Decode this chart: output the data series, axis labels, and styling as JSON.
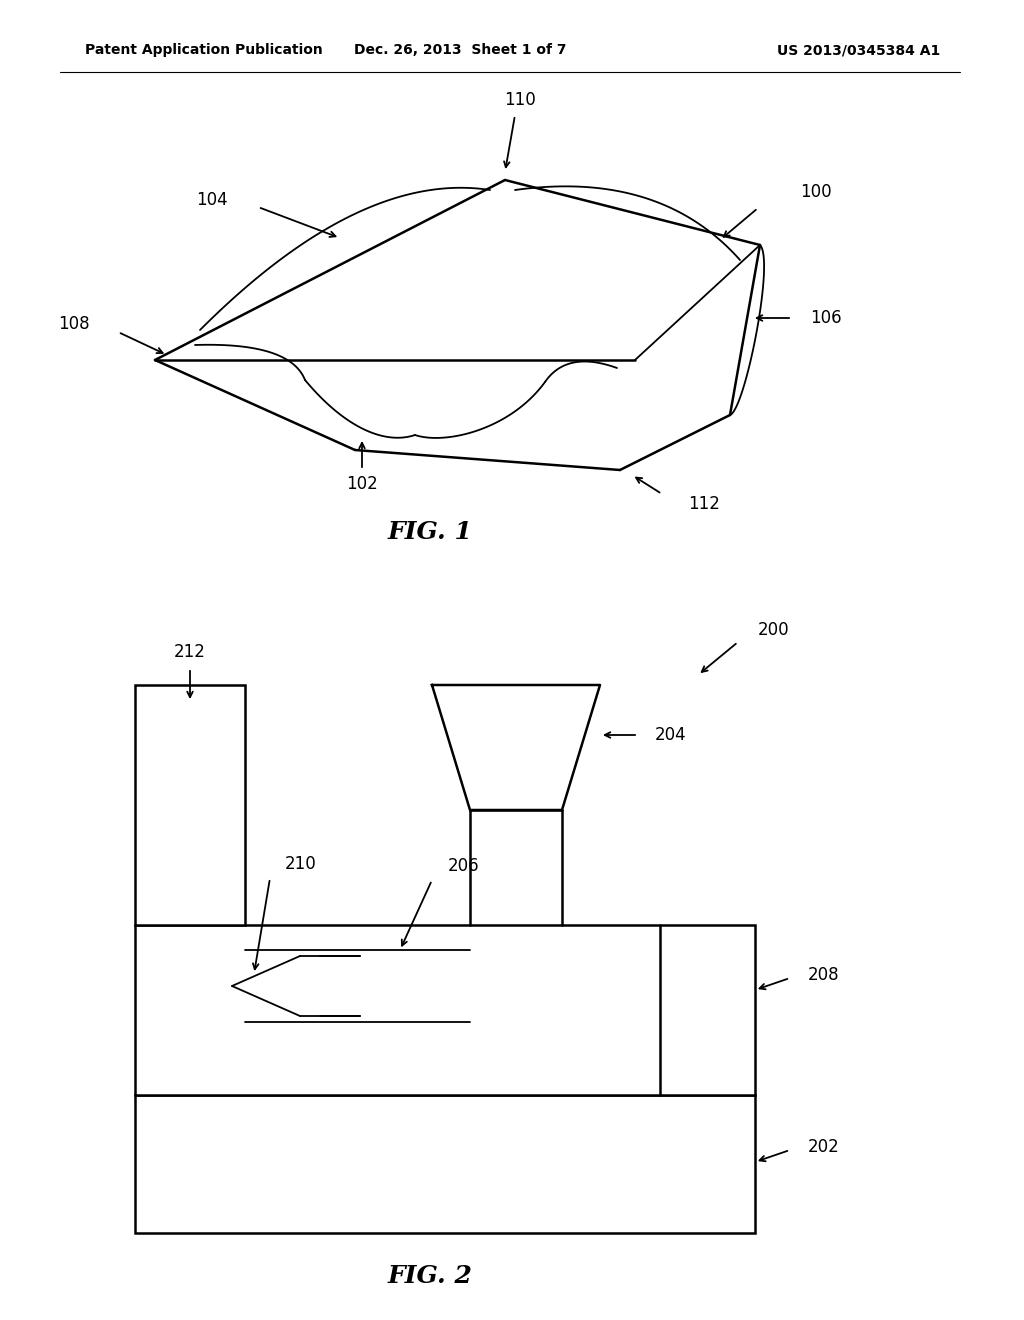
{
  "background": "#ffffff",
  "line_color": "#000000",
  "header_left": "Patent Application Publication",
  "header_mid": "Dec. 26, 2013  Sheet 1 of 7",
  "header_right": "US 2013/0345384 A1",
  "fig1_caption": "FIG. 1",
  "fig2_caption": "FIG. 2",
  "lw_main": 1.8,
  "lw_thin": 1.3
}
